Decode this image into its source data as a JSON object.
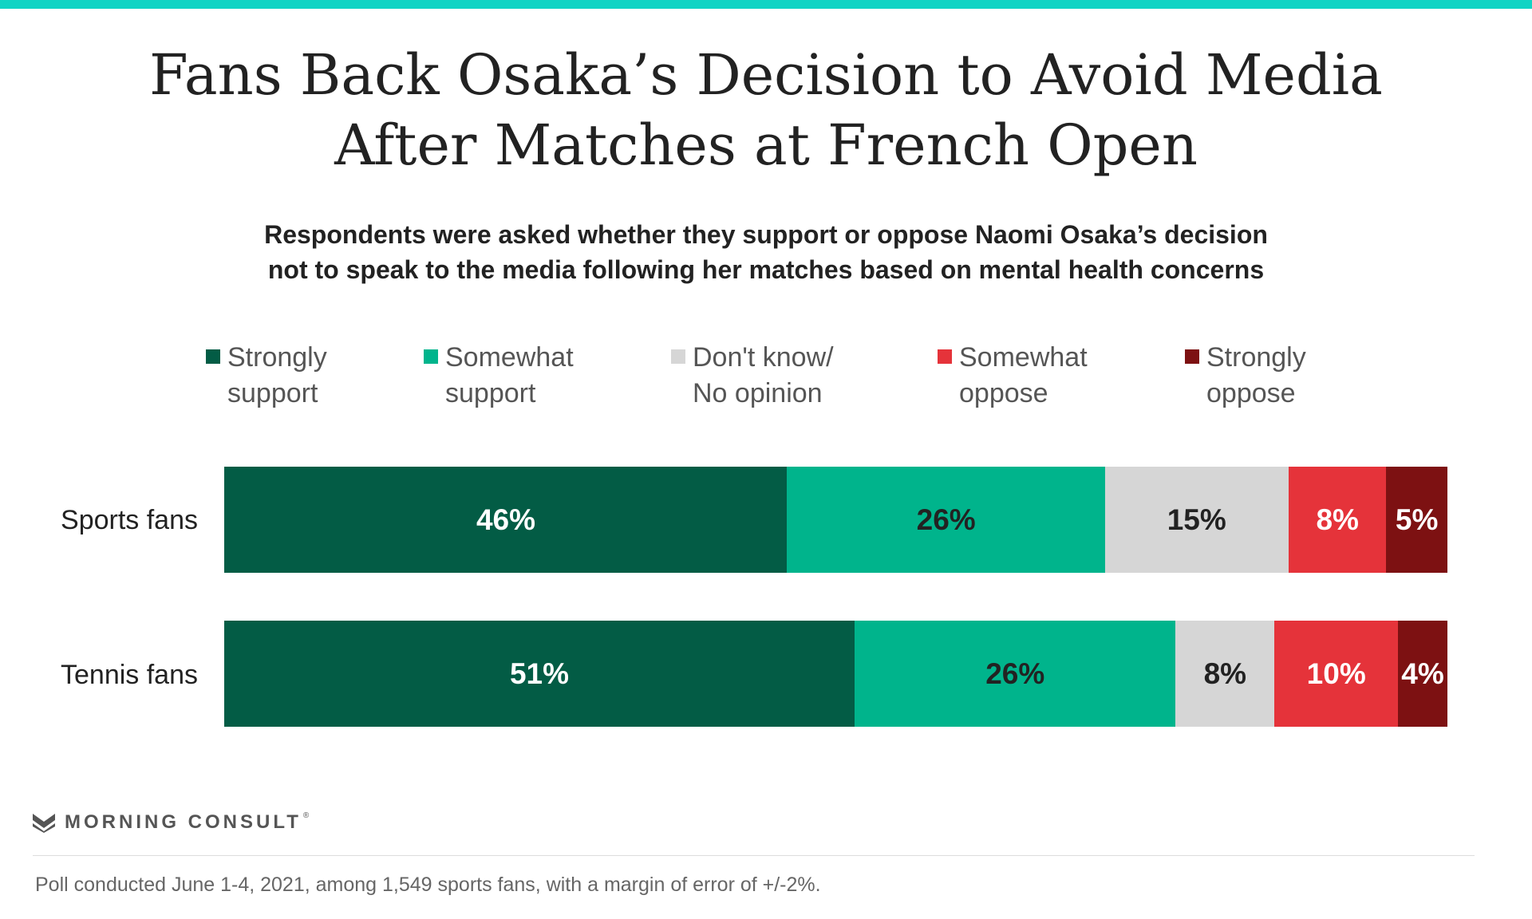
{
  "colors": {
    "top_bar": "#12d4c4",
    "strongly_support": "#035c45",
    "somewhat_support": "#00b48c",
    "dont_know": "#d6d6d6",
    "somewhat_oppose": "#e5333a",
    "strongly_oppose": "#7d1112",
    "text_dark": "#222222",
    "text_light": "#ffffff"
  },
  "title": {
    "line1": "Fans Back Osaka’s Decision to Avoid Media",
    "line2": "After Matches at French Open"
  },
  "subtitle": {
    "line1": "Respondents were asked whether they support or oppose Naomi Osaka’s decision",
    "line2": "not to speak to the media following her matches based on mental health concerns"
  },
  "legend": [
    {
      "line1": "Strongly",
      "line2": "support",
      "color": "#035c45"
    },
    {
      "line1": "Somewhat",
      "line2": "support",
      "color": "#00b48c"
    },
    {
      "line1": "Don't know/",
      "line2": "No opinion",
      "color": "#d6d6d6"
    },
    {
      "line1": "Somewhat",
      "line2": "oppose",
      "color": "#e5333a"
    },
    {
      "line1": "Strongly",
      "line2": "oppose",
      "color": "#7d1112"
    }
  ],
  "chart_data": {
    "type": "bar",
    "orientation": "horizontal",
    "stacked": true,
    "title": "Fans Back Osaka’s Decision to Avoid Media After Matches at French Open",
    "subtitle": "Respondents were asked whether they support or oppose Naomi Osaka’s decision not to speak to the media following her matches based on mental health concerns",
    "categories": [
      "Sports fans",
      "Tennis fans"
    ],
    "value_unit": "%",
    "xlim": [
      0,
      100
    ],
    "grid": false,
    "legend_position": "top",
    "series": [
      {
        "name": "Strongly support",
        "color": "#035c45",
        "label_color": "#ffffff",
        "values": [
          46,
          51
        ]
      },
      {
        "name": "Somewhat support",
        "color": "#00b48c",
        "label_color": "#222222",
        "values": [
          26,
          26
        ]
      },
      {
        "name": "Don't know/ No opinion",
        "color": "#d6d6d6",
        "label_color": "#222222",
        "values": [
          15,
          8
        ]
      },
      {
        "name": "Somewhat oppose",
        "color": "#e5333a",
        "label_color": "#ffffff",
        "values": [
          8,
          10
        ]
      },
      {
        "name": "Strongly oppose",
        "color": "#7d1112",
        "label_color": "#ffffff",
        "values": [
          5,
          4
        ]
      }
    ]
  },
  "brand": {
    "name": "MORNING CONSULT",
    "mark": "®"
  },
  "footnote": "Poll conducted June 1-4, 2021, among 1,549 sports fans, with a margin of error of +/-2%."
}
